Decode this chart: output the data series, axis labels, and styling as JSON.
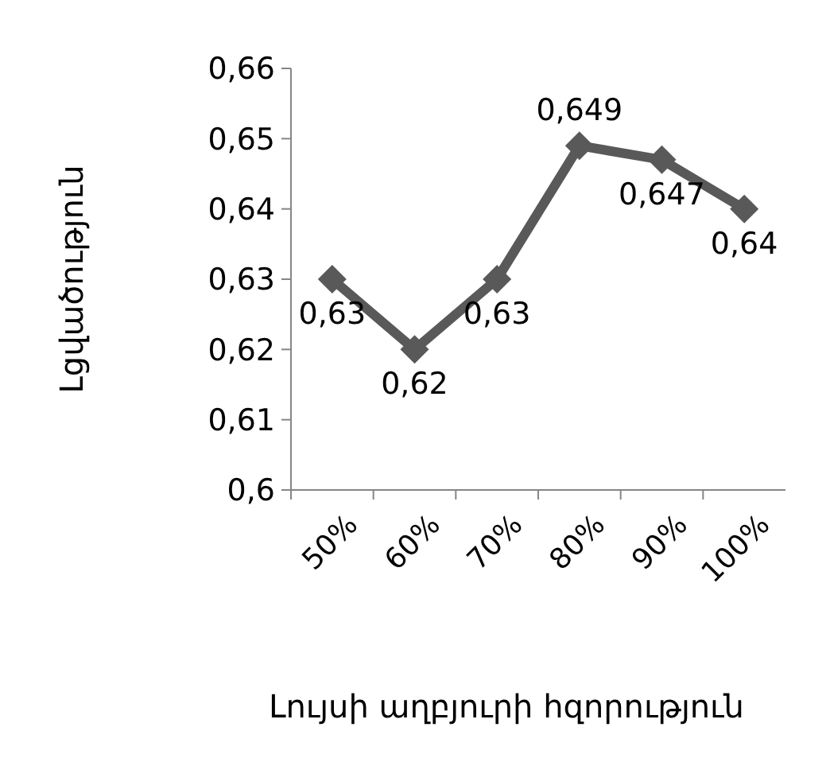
{
  "chart_data": {
    "type": "line",
    "xlabel": "Լույսի աղբյուրի հզորություն",
    "ylabel": "Լցվածություն",
    "categories": [
      "50%",
      "60%",
      "70%",
      "80%",
      "90%",
      "100%"
    ],
    "series": [
      {
        "color": "#595959",
        "values": [
          0.63,
          0.62,
          0.63,
          0.649,
          0.647,
          0.64
        ],
        "value_labels": [
          "0,63",
          "0,62",
          "0,63",
          "0,649",
          "0,647",
          "0,64"
        ]
      }
    ],
    "ylim": [
      0.6,
      0.66
    ],
    "yticks": [
      {
        "value": 0.6,
        "label": "0,6"
      },
      {
        "value": 0.61,
        "label": "0,61"
      },
      {
        "value": 0.62,
        "label": "0,62"
      },
      {
        "value": 0.63,
        "label": "0,63"
      },
      {
        "value": 0.64,
        "label": "0,64"
      },
      {
        "value": 0.65,
        "label": "0,65"
      },
      {
        "value": 0.66,
        "label": "0,66"
      }
    ],
    "grid": false,
    "marker": "diamond",
    "line_style": "solid"
  }
}
